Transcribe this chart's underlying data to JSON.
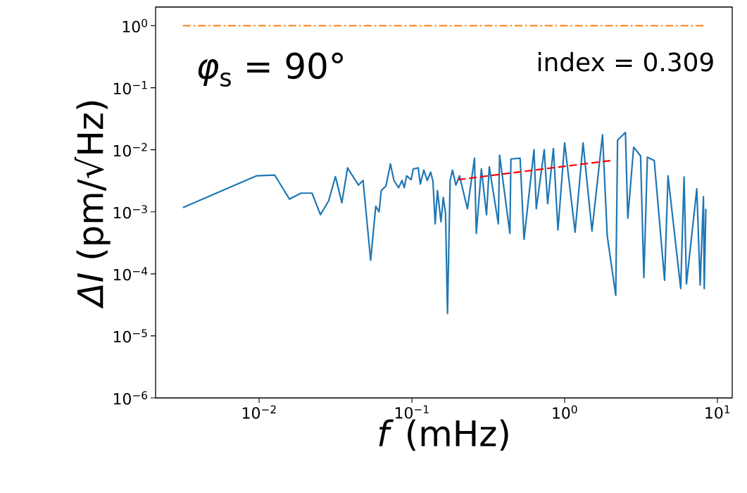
{
  "chart_data": {
    "type": "line",
    "xlabel": "*f* (mHz)",
    "ylabel": "*ΔI* (pm/√Hz)",
    "log": "xy",
    "annotations": [
      "*φ*$_{s}$ = 90°",
      "index = 0.309"
    ],
    "xlim": [
      0.0021,
      12.5
    ],
    "ylim": [
      1e-06,
      2
    ],
    "xticks": [
      {
        "value": 0.01,
        "label": "10$^{−2}$"
      },
      {
        "value": 0.1,
        "label": "10$^{−1}$"
      },
      {
        "value": 1,
        "label": "10$^{0}$"
      },
      {
        "value": 10,
        "label": "10$^{1}$"
      }
    ],
    "yticks": [
      {
        "value": 1e-06,
        "label": "10$^{−6}$"
      },
      {
        "value": 1e-05,
        "label": "10$^{−5}$"
      },
      {
        "value": 0.0001,
        "label": "10$^{−4}$"
      },
      {
        "value": 0.001,
        "label": "10$^{−3}$"
      },
      {
        "value": 0.01,
        "label": "10$^{−2}$"
      },
      {
        "value": 0.1,
        "label": "10$^{−1}$"
      },
      {
        "value": 1,
        "label": "10$^{0}$"
      }
    ],
    "series": [
      {
        "color": "#1f77b4",
        "line_style": "solid",
        "x": [
          0.00317,
          0.0096,
          0.01265,
          0.0158,
          0.0188,
          0.0222,
          0.0252,
          0.0285,
          0.0316,
          0.0348,
          0.0379,
          0.0447,
          0.0479,
          0.0537,
          0.058,
          0.061,
          0.063,
          0.0676,
          0.0724,
          0.0763,
          0.0818,
          0.0862,
          0.0891,
          0.0923,
          0.0989,
          0.102,
          0.11,
          0.1135,
          0.1197,
          0.126,
          0.1327,
          0.1374,
          0.142,
          0.147,
          0.155,
          0.1605,
          0.166,
          0.171,
          0.178,
          0.1845,
          0.194,
          0.205,
          0.231,
          0.257,
          0.264,
          0.285,
          0.308,
          0.321,
          0.368,
          0.375,
          0.438,
          0.445,
          0.511,
          0.542,
          0.63,
          0.652,
          0.735,
          0.774,
          0.844,
          0.904,
          1.0,
          1.17,
          1.32,
          1.51,
          1.77,
          1.9,
          2.16,
          2.22,
          2.5,
          2.59,
          2.83,
          3.14,
          3.3,
          3.48,
          3.86,
          4.51,
          4.75,
          5.75,
          6.05,
          6.27,
          7.33,
          7.71,
          8.1,
          8.2,
          8.4
        ],
        "values": [
          0.00117,
          0.0038,
          0.0039,
          0.0016,
          0.002,
          0.002,
          0.0009,
          0.0015,
          0.0037,
          0.0014,
          0.0051,
          0.0027,
          0.0032,
          0.000165,
          0.00123,
          0.001,
          0.0022,
          0.0026,
          0.0059,
          0.0032,
          0.00245,
          0.0032,
          0.00245,
          0.0038,
          0.0033,
          0.0049,
          0.0051,
          0.0028,
          0.0047,
          0.0032,
          0.00435,
          0.0031,
          0.00064,
          0.0022,
          0.00069,
          0.0017,
          0.00095,
          2.3e-05,
          0.0032,
          0.0047,
          0.0027,
          0.0038,
          0.00112,
          0.0073,
          0.00045,
          0.0049,
          0.0009,
          0.0053,
          0.00064,
          0.0082,
          0.00045,
          0.0071,
          0.0073,
          0.00036,
          0.01,
          0.00112,
          0.01,
          0.00135,
          0.0105,
          0.00051,
          0.0129,
          0.00047,
          0.0129,
          0.00049,
          0.0175,
          0.00041,
          4.5e-05,
          0.0143,
          0.019,
          0.00079,
          0.011,
          0.008,
          8.7e-05,
          0.0076,
          0.0067,
          7.9e-05,
          0.0038,
          5.8e-05,
          0.00365,
          6.9e-05,
          0.00235,
          6.6e-05,
          0.00175,
          5.8e-05,
          0.00112
        ]
      },
      {
        "color": "#ff7f0e",
        "line_style": "dashdot",
        "x": [
          0.00317,
          8.4
        ],
        "values": [
          1,
          1
        ]
      },
      {
        "color": "#ff0000",
        "line_style": "dashed",
        "x": [
          0.2,
          2.0
        ],
        "values": [
          0.0033,
          0.0067
        ]
      }
    ]
  }
}
